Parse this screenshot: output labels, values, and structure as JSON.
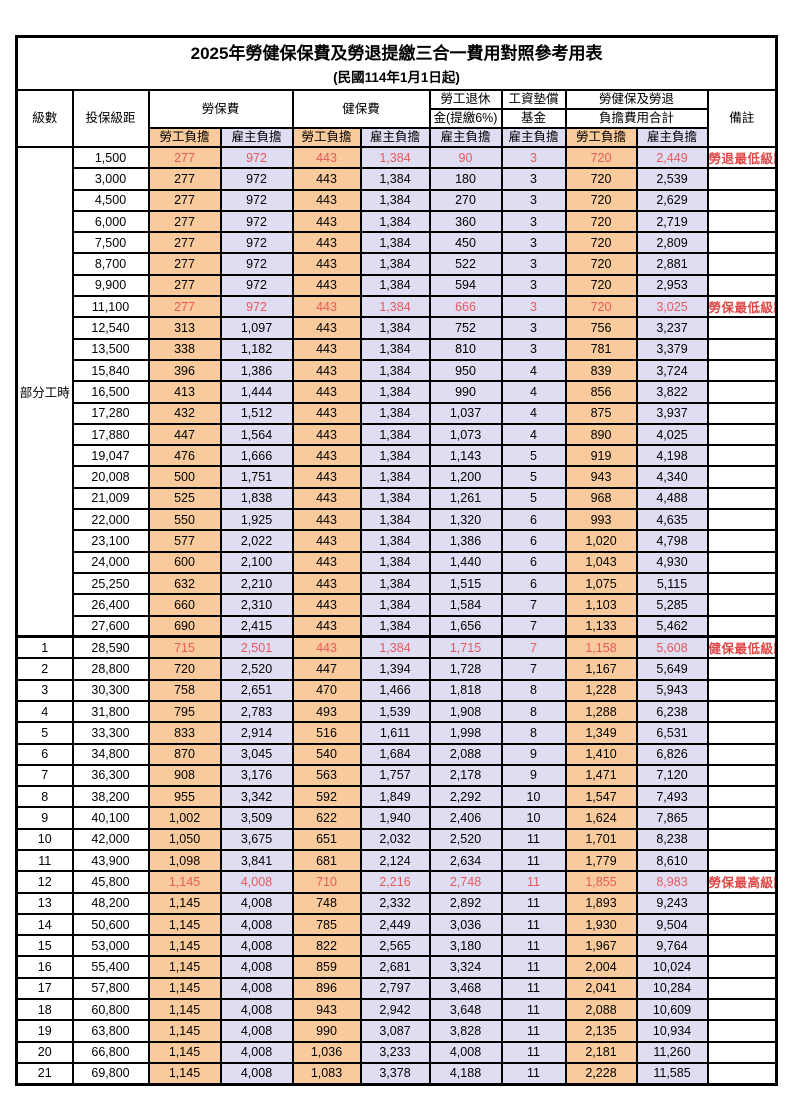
{
  "title": "2025年勞健保保費及勞退提繳三合一費用對照參考用表",
  "subtitle": "(民國114年1月1日起)",
  "header": {
    "level": "級數",
    "bracket": "投保級距",
    "labor": "勞保費",
    "health": "健保費",
    "pension_l1": "勞工退休",
    "pension_l2": "金(提繳6%)",
    "fund_l1": "工資墊償",
    "fund_l2": "基金",
    "total_l1": "勞健保及勞退",
    "total_l2": "負擔費用合計",
    "remark": "備註",
    "employee": "勞工負擔",
    "employer": "雇主負擔"
  },
  "group_label": "部分工時",
  "group_rowspan": 23,
  "colors": {
    "employee_bg": "#F9CB9C",
    "employer_bg": "#DEDDF2",
    "red_value": "#E8595C",
    "red_remark": "#E04848",
    "border": "#000000"
  },
  "rows": [
    {
      "level": "",
      "bracket": "1,500",
      "values": [
        "277",
        "972",
        "443",
        "1,384",
        "90",
        "3",
        "720",
        "2,449"
      ],
      "remark": "勞退最低級距",
      "red": true,
      "thick_top": false
    },
    {
      "level": "",
      "bracket": "3,000",
      "values": [
        "277",
        "972",
        "443",
        "1,384",
        "180",
        "3",
        "720",
        "2,539"
      ],
      "remark": "",
      "red": false,
      "thick_top": false
    },
    {
      "level": "",
      "bracket": "4,500",
      "values": [
        "277",
        "972",
        "443",
        "1,384",
        "270",
        "3",
        "720",
        "2,629"
      ],
      "remark": "",
      "red": false,
      "thick_top": false
    },
    {
      "level": "",
      "bracket": "6,000",
      "values": [
        "277",
        "972",
        "443",
        "1,384",
        "360",
        "3",
        "720",
        "2,719"
      ],
      "remark": "",
      "red": false,
      "thick_top": false
    },
    {
      "level": "",
      "bracket": "7,500",
      "values": [
        "277",
        "972",
        "443",
        "1,384",
        "450",
        "3",
        "720",
        "2,809"
      ],
      "remark": "",
      "red": false,
      "thick_top": false
    },
    {
      "level": "",
      "bracket": "8,700",
      "values": [
        "277",
        "972",
        "443",
        "1,384",
        "522",
        "3",
        "720",
        "2,881"
      ],
      "remark": "",
      "red": false,
      "thick_top": false
    },
    {
      "level": "",
      "bracket": "9,900",
      "values": [
        "277",
        "972",
        "443",
        "1,384",
        "594",
        "3",
        "720",
        "2,953"
      ],
      "remark": "",
      "red": false,
      "thick_top": false
    },
    {
      "level": "",
      "bracket": "11,100",
      "values": [
        "277",
        "972",
        "443",
        "1,384",
        "666",
        "3",
        "720",
        "3,025"
      ],
      "remark": "勞保最低級距",
      "red": true,
      "thick_top": false
    },
    {
      "level": "",
      "bracket": "12,540",
      "values": [
        "313",
        "1,097",
        "443",
        "1,384",
        "752",
        "3",
        "756",
        "3,237"
      ],
      "remark": "",
      "red": false,
      "thick_top": false
    },
    {
      "level": "",
      "bracket": "13,500",
      "values": [
        "338",
        "1,182",
        "443",
        "1,384",
        "810",
        "3",
        "781",
        "3,379"
      ],
      "remark": "",
      "red": false,
      "thick_top": false
    },
    {
      "level": "",
      "bracket": "15,840",
      "values": [
        "396",
        "1,386",
        "443",
        "1,384",
        "950",
        "4",
        "839",
        "3,724"
      ],
      "remark": "",
      "red": false,
      "thick_top": false
    },
    {
      "level": "",
      "bracket": "16,500",
      "values": [
        "413",
        "1,444",
        "443",
        "1,384",
        "990",
        "4",
        "856",
        "3,822"
      ],
      "remark": "",
      "red": false,
      "thick_top": false
    },
    {
      "level": "",
      "bracket": "17,280",
      "values": [
        "432",
        "1,512",
        "443",
        "1,384",
        "1,037",
        "4",
        "875",
        "3,937"
      ],
      "remark": "",
      "red": false,
      "thick_top": false
    },
    {
      "level": "",
      "bracket": "17,880",
      "values": [
        "447",
        "1,564",
        "443",
        "1,384",
        "1,073",
        "4",
        "890",
        "4,025"
      ],
      "remark": "",
      "red": false,
      "thick_top": false
    },
    {
      "level": "",
      "bracket": "19,047",
      "values": [
        "476",
        "1,666",
        "443",
        "1,384",
        "1,143",
        "5",
        "919",
        "4,198"
      ],
      "remark": "",
      "red": false,
      "thick_top": false
    },
    {
      "level": "",
      "bracket": "20,008",
      "values": [
        "500",
        "1,751",
        "443",
        "1,384",
        "1,200",
        "5",
        "943",
        "4,340"
      ],
      "remark": "",
      "red": false,
      "thick_top": false
    },
    {
      "level": "",
      "bracket": "21,009",
      "values": [
        "525",
        "1,838",
        "443",
        "1,384",
        "1,261",
        "5",
        "968",
        "4,488"
      ],
      "remark": "",
      "red": false,
      "thick_top": false
    },
    {
      "level": "",
      "bracket": "22,000",
      "values": [
        "550",
        "1,925",
        "443",
        "1,384",
        "1,320",
        "6",
        "993",
        "4,635"
      ],
      "remark": "",
      "red": false,
      "thick_top": false
    },
    {
      "level": "",
      "bracket": "23,100",
      "values": [
        "577",
        "2,022",
        "443",
        "1,384",
        "1,386",
        "6",
        "1,020",
        "4,798"
      ],
      "remark": "",
      "red": false,
      "thick_top": false
    },
    {
      "level": "",
      "bracket": "24,000",
      "values": [
        "600",
        "2,100",
        "443",
        "1,384",
        "1,440",
        "6",
        "1,043",
        "4,930"
      ],
      "remark": "",
      "red": false,
      "thick_top": false
    },
    {
      "level": "",
      "bracket": "25,250",
      "values": [
        "632",
        "2,210",
        "443",
        "1,384",
        "1,515",
        "6",
        "1,075",
        "5,115"
      ],
      "remark": "",
      "red": false,
      "thick_top": false
    },
    {
      "level": "",
      "bracket": "26,400",
      "values": [
        "660",
        "2,310",
        "443",
        "1,384",
        "1,584",
        "7",
        "1,103",
        "5,285"
      ],
      "remark": "",
      "red": false,
      "thick_top": false
    },
    {
      "level": "",
      "bracket": "27,600",
      "values": [
        "690",
        "2,415",
        "443",
        "1,384",
        "1,656",
        "7",
        "1,133",
        "5,462"
      ],
      "remark": "",
      "red": false,
      "thick_top": false
    },
    {
      "level": "1",
      "bracket": "28,590",
      "values": [
        "715",
        "2,501",
        "443",
        "1,384",
        "1,715",
        "7",
        "1,158",
        "5,608"
      ],
      "remark": "健保最低級距",
      "red": true,
      "thick_top": true
    },
    {
      "level": "2",
      "bracket": "28,800",
      "values": [
        "720",
        "2,520",
        "447",
        "1,394",
        "1,728",
        "7",
        "1,167",
        "5,649"
      ],
      "remark": "",
      "red": false,
      "thick_top": false
    },
    {
      "level": "3",
      "bracket": "30,300",
      "values": [
        "758",
        "2,651",
        "470",
        "1,466",
        "1,818",
        "8",
        "1,228",
        "5,943"
      ],
      "remark": "",
      "red": false,
      "thick_top": false
    },
    {
      "level": "4",
      "bracket": "31,800",
      "values": [
        "795",
        "2,783",
        "493",
        "1,539",
        "1,908",
        "8",
        "1,288",
        "6,238"
      ],
      "remark": "",
      "red": false,
      "thick_top": false
    },
    {
      "level": "5",
      "bracket": "33,300",
      "values": [
        "833",
        "2,914",
        "516",
        "1,611",
        "1,998",
        "8",
        "1,349",
        "6,531"
      ],
      "remark": "",
      "red": false,
      "thick_top": false
    },
    {
      "level": "6",
      "bracket": "34,800",
      "values": [
        "870",
        "3,045",
        "540",
        "1,684",
        "2,088",
        "9",
        "1,410",
        "6,826"
      ],
      "remark": "",
      "red": false,
      "thick_top": false
    },
    {
      "level": "7",
      "bracket": "36,300",
      "values": [
        "908",
        "3,176",
        "563",
        "1,757",
        "2,178",
        "9",
        "1,471",
        "7,120"
      ],
      "remark": "",
      "red": false,
      "thick_top": false
    },
    {
      "level": "8",
      "bracket": "38,200",
      "values": [
        "955",
        "3,342",
        "592",
        "1,849",
        "2,292",
        "10",
        "1,547",
        "7,493"
      ],
      "remark": "",
      "red": false,
      "thick_top": false
    },
    {
      "level": "9",
      "bracket": "40,100",
      "values": [
        "1,002",
        "3,509",
        "622",
        "1,940",
        "2,406",
        "10",
        "1,624",
        "7,865"
      ],
      "remark": "",
      "red": false,
      "thick_top": false
    },
    {
      "level": "10",
      "bracket": "42,000",
      "values": [
        "1,050",
        "3,675",
        "651",
        "2,032",
        "2,520",
        "11",
        "1,701",
        "8,238"
      ],
      "remark": "",
      "red": false,
      "thick_top": false
    },
    {
      "level": "11",
      "bracket": "43,900",
      "values": [
        "1,098",
        "3,841",
        "681",
        "2,124",
        "2,634",
        "11",
        "1,779",
        "8,610"
      ],
      "remark": "",
      "red": false,
      "thick_top": false
    },
    {
      "level": "12",
      "bracket": "45,800",
      "values": [
        "1,145",
        "4,008",
        "710",
        "2,216",
        "2,748",
        "11",
        "1,855",
        "8,983"
      ],
      "remark": "勞保最高級距",
      "red": true,
      "thick_top": false
    },
    {
      "level": "13",
      "bracket": "48,200",
      "values": [
        "1,145",
        "4,008",
        "748",
        "2,332",
        "2,892",
        "11",
        "1,893",
        "9,243"
      ],
      "remark": "",
      "red": false,
      "thick_top": false
    },
    {
      "level": "14",
      "bracket": "50,600",
      "values": [
        "1,145",
        "4,008",
        "785",
        "2,449",
        "3,036",
        "11",
        "1,930",
        "9,504"
      ],
      "remark": "",
      "red": false,
      "thick_top": false
    },
    {
      "level": "15",
      "bracket": "53,000",
      "values": [
        "1,145",
        "4,008",
        "822",
        "2,565",
        "3,180",
        "11",
        "1,967",
        "9,764"
      ],
      "remark": "",
      "red": false,
      "thick_top": false
    },
    {
      "level": "16",
      "bracket": "55,400",
      "values": [
        "1,145",
        "4,008",
        "859",
        "2,681",
        "3,324",
        "11",
        "2,004",
        "10,024"
      ],
      "remark": "",
      "red": false,
      "thick_top": false
    },
    {
      "level": "17",
      "bracket": "57,800",
      "values": [
        "1,145",
        "4,008",
        "896",
        "2,797",
        "3,468",
        "11",
        "2,041",
        "10,284"
      ],
      "remark": "",
      "red": false,
      "thick_top": false
    },
    {
      "level": "18",
      "bracket": "60,800",
      "values": [
        "1,145",
        "4,008",
        "943",
        "2,942",
        "3,648",
        "11",
        "2,088",
        "10,609"
      ],
      "remark": "",
      "red": false,
      "thick_top": false
    },
    {
      "level": "19",
      "bracket": "63,800",
      "values": [
        "1,145",
        "4,008",
        "990",
        "3,087",
        "3,828",
        "11",
        "2,135",
        "10,934"
      ],
      "remark": "",
      "red": false,
      "thick_top": false
    },
    {
      "level": "20",
      "bracket": "66,800",
      "values": [
        "1,145",
        "4,008",
        "1,036",
        "3,233",
        "4,008",
        "11",
        "2,181",
        "11,260"
      ],
      "remark": "",
      "red": false,
      "thick_top": false
    },
    {
      "level": "21",
      "bracket": "69,800",
      "values": [
        "1,145",
        "4,008",
        "1,083",
        "3,378",
        "4,188",
        "11",
        "2,228",
        "11,585"
      ],
      "remark": "",
      "red": false,
      "thick_top": false
    }
  ]
}
